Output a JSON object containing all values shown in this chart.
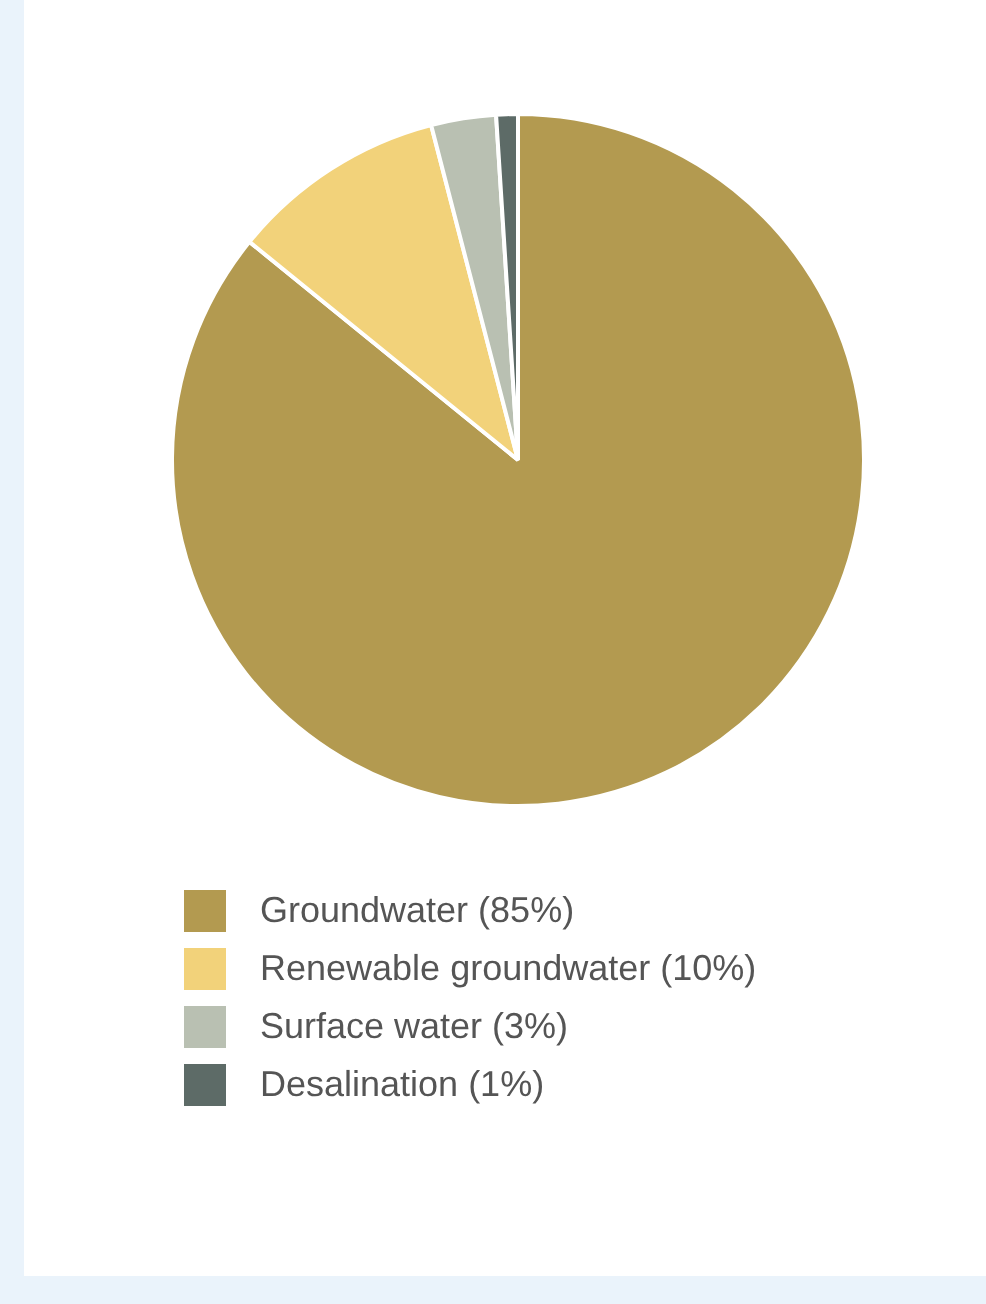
{
  "chart_data": {
    "type": "pie",
    "categories": [
      "Groundwater (85%)",
      "Renewable groundwater (10%)",
      "Surface water (3%)",
      "Desalination (1%)"
    ],
    "values": [
      85,
      10,
      3,
      1
    ],
    "colors": [
      "#b39a50",
      "#f2d27a",
      "#b9c0b2",
      "#5d6b67"
    ],
    "legend": "bottom"
  }
}
